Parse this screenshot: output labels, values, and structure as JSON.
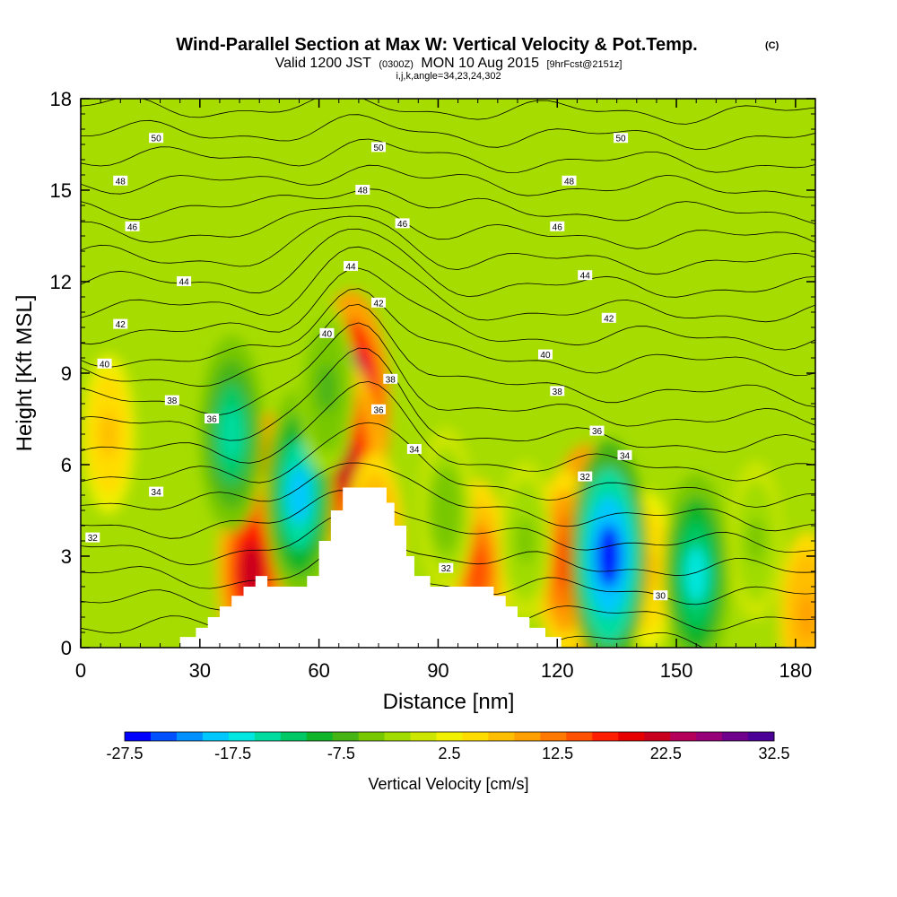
{
  "header": {
    "title": "Wind-Parallel Section at Max W: Vertical Velocity & Pot.Temp.",
    "title_mark": "(C)",
    "valid_prefix": "Valid 1200 JST",
    "valid_utc": "(0300Z)",
    "valid_date": "MON 10 Aug 2015",
    "forecast": "[9hrFcst@2151z]",
    "indices": "i,j,k,angle=34,23,24,302"
  },
  "colorbar": {
    "label": "Vertical Velocity [cm/s]",
    "tick_labels": [
      "-27.5",
      "-17.5",
      "-7.5",
      "2.5",
      "12.5",
      "22.5",
      "32.5"
    ],
    "colors": [
      "#0000ff",
      "#0050ff",
      "#0090ff",
      "#00c8ff",
      "#00e6e0",
      "#00dca0",
      "#00c864",
      "#10b428",
      "#46b414",
      "#78c800",
      "#a0dc00",
      "#cde600",
      "#f0f000",
      "#ffdc00",
      "#ffbe00",
      "#ffa000",
      "#ff7800",
      "#ff5000",
      "#ff1e00",
      "#e60000",
      "#c8001e",
      "#b4005a",
      "#960078",
      "#6e008c",
      "#4b0096"
    ]
  },
  "chart_data": {
    "type": "heatmap",
    "title": "Wind-Parallel Section at Max W: Vertical Velocity & Pot.Temp.",
    "xlabel": "Distance [nm]",
    "ylabel": "Height [Kft MSL]",
    "xlim": [
      0,
      185
    ],
    "ylim": [
      0,
      18
    ],
    "x_ticks": [
      0,
      30,
      60,
      90,
      120,
      150,
      180
    ],
    "y_ticks": [
      0,
      3,
      6,
      9,
      12,
      15,
      18
    ],
    "x_tick_labels": [
      "0",
      "30",
      "60",
      "90",
      "120",
      "150",
      "180"
    ],
    "y_tick_labels": [
      "0",
      "3",
      "6",
      "9",
      "12",
      "15",
      "18"
    ],
    "color_variable": "Vertical Velocity [cm/s]",
    "color_range": [
      -30,
      35
    ],
    "color_interval": 2.5,
    "terrain": [
      [
        0,
        0
      ],
      [
        25,
        0
      ],
      [
        25,
        0.35
      ],
      [
        29,
        0.35
      ],
      [
        29,
        0.65
      ],
      [
        32,
        0.65
      ],
      [
        32,
        1.0
      ],
      [
        35,
        1.0
      ],
      [
        35,
        1.35
      ],
      [
        38,
        1.35
      ],
      [
        38,
        1.7
      ],
      [
        41,
        1.7
      ],
      [
        41,
        2.0
      ],
      [
        44,
        2.0
      ],
      [
        44,
        2.35
      ],
      [
        47,
        2.35
      ],
      [
        47,
        2.0
      ],
      [
        57,
        2.0
      ],
      [
        57,
        2.35
      ],
      [
        60,
        2.35
      ],
      [
        60,
        3.5
      ],
      [
        63,
        3.5
      ],
      [
        63,
        4.5
      ],
      [
        66,
        4.5
      ],
      [
        66,
        5.25
      ],
      [
        77,
        5.25
      ],
      [
        77,
        4.75
      ],
      [
        79,
        4.75
      ],
      [
        79,
        4.0
      ],
      [
        82,
        4.0
      ],
      [
        82,
        3.0
      ],
      [
        84,
        3.0
      ],
      [
        84,
        2.35
      ],
      [
        88,
        2.35
      ],
      [
        88,
        2.0
      ],
      [
        104,
        2.0
      ],
      [
        104,
        1.7
      ],
      [
        107,
        1.7
      ],
      [
        107,
        1.35
      ],
      [
        110,
        1.35
      ],
      [
        110,
        1.0
      ],
      [
        113,
        1.0
      ],
      [
        113,
        0.65
      ],
      [
        117,
        0.65
      ],
      [
        117,
        0.35
      ],
      [
        121,
        0.35
      ],
      [
        121,
        0
      ],
      [
        185,
        0
      ]
    ],
    "updraft_cells": [
      {
        "x": 47,
        "z": 4.0,
        "w": 27
      },
      {
        "x": 43,
        "z": 2.5,
        "w": 22
      },
      {
        "x": 68,
        "z": 7.8,
        "w": 32
      },
      {
        "x": 67,
        "z": 6.0,
        "w": 22
      },
      {
        "x": 127,
        "z": 3.0,
        "w": 27
      },
      {
        "x": 100,
        "z": 2.5,
        "w": 14
      },
      {
        "x": 122,
        "z": 2.8,
        "w": 15
      },
      {
        "x": 74,
        "z": 3.5,
        "w": 12
      },
      {
        "x": 143,
        "z": 2.5,
        "w": 6
      },
      {
        "x": 183,
        "z": 1.0,
        "w": 10
      },
      {
        "x": 7,
        "z": 7.0,
        "w": 6
      }
    ],
    "downdraft_cells": [
      {
        "x": 55,
        "z": 5.0,
        "w": -23
      },
      {
        "x": 38,
        "z": 7.0,
        "w": -18
      },
      {
        "x": 133,
        "z": 3.0,
        "w": -30
      },
      {
        "x": 155,
        "z": 2.4,
        "w": -20
      },
      {
        "x": 62,
        "z": 8.5,
        "w": -10
      },
      {
        "x": 92,
        "z": 4.5,
        "w": -8
      },
      {
        "x": 112,
        "z": 3.5,
        "w": -6
      },
      {
        "x": 170,
        "z": 3.5,
        "w": -6
      }
    ],
    "contour_variable": "Potential Temperature",
    "contour_levels": [
      30,
      31,
      32,
      33,
      34,
      35,
      36,
      37,
      38,
      39,
      40,
      41,
      42,
      43,
      44,
      45,
      46,
      47,
      48,
      49,
      50,
      51
    ],
    "contour_labels": [
      {
        "text": "50",
        "x": 19,
        "z": 16.7
      },
      {
        "text": "50",
        "x": 75,
        "z": 16.4
      },
      {
        "text": "50",
        "x": 136,
        "z": 16.7
      },
      {
        "text": "48",
        "x": 10,
        "z": 15.3
      },
      {
        "text": "48",
        "x": 71,
        "z": 15.0
      },
      {
        "text": "48",
        "x": 123,
        "z": 15.3
      },
      {
        "text": "46",
        "x": 13,
        "z": 13.8
      },
      {
        "text": "46",
        "x": 81,
        "z": 13.9
      },
      {
        "text": "46",
        "x": 120,
        "z": 13.8
      },
      {
        "text": "44",
        "x": 26,
        "z": 12.0
      },
      {
        "text": "44",
        "x": 68,
        "z": 12.5
      },
      {
        "text": "44",
        "x": 127,
        "z": 12.2
      },
      {
        "text": "42",
        "x": 10,
        "z": 10.6
      },
      {
        "text": "42",
        "x": 75,
        "z": 11.3
      },
      {
        "text": "42",
        "x": 133,
        "z": 10.8
      },
      {
        "text": "40",
        "x": 6,
        "z": 9.3
      },
      {
        "text": "40",
        "x": 62,
        "z": 10.3
      },
      {
        "text": "40",
        "x": 117,
        "z": 9.6
      },
      {
        "text": "38",
        "x": 23,
        "z": 8.1
      },
      {
        "text": "38",
        "x": 78,
        "z": 8.8
      },
      {
        "text": "38",
        "x": 120,
        "z": 8.4
      },
      {
        "text": "36",
        "x": 33,
        "z": 7.5
      },
      {
        "text": "36",
        "x": 75,
        "z": 7.8
      },
      {
        "text": "36",
        "x": 130,
        "z": 7.1
      },
      {
        "text": "34",
        "x": 19,
        "z": 5.1
      },
      {
        "text": "34",
        "x": 84,
        "z": 6.5
      },
      {
        "text": "34",
        "x": 137,
        "z": 6.3
      },
      {
        "text": "32",
        "x": 3,
        "z": 3.6
      },
      {
        "text": "32",
        "x": 127,
        "z": 5.6
      },
      {
        "text": "32",
        "x": 92,
        "z": 2.6
      },
      {
        "text": "30",
        "x": 146,
        "z": 1.7
      }
    ]
  }
}
